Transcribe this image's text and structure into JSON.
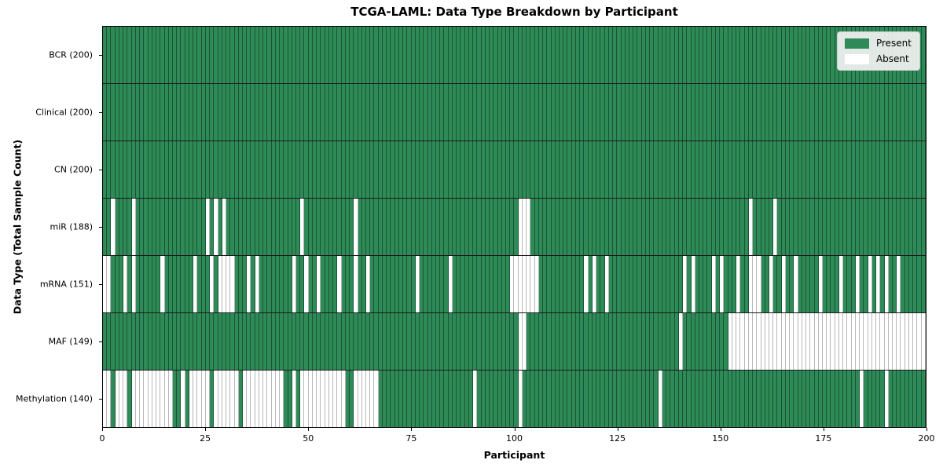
{
  "chart_data": {
    "type": "heatmap",
    "title": "TCGA-LAML: Data Type Breakdown by Participant",
    "xlabel": "Participant",
    "ylabel": "Data Type (Total Sample Count)",
    "n_participants": 200,
    "x_ticks": [
      0,
      25,
      50,
      75,
      100,
      125,
      150,
      175,
      200
    ],
    "legend": [
      {
        "label": "Present",
        "color": "#2e8b57"
      },
      {
        "label": "Absent",
        "color": "#ffffff"
      }
    ],
    "colors": {
      "present": "#2e8b57",
      "absent": "#ffffff",
      "present_edge": "rgba(10,40,25,0.55)",
      "absent_edge": "#b8b8b8"
    },
    "legend_position": "upper right",
    "grid": false,
    "rows": [
      {
        "label": "BCR (200)",
        "name": "BCR",
        "present_count": 200,
        "absent": []
      },
      {
        "label": "Clinical (200)",
        "name": "Clinical",
        "present_count": 200,
        "absent": []
      },
      {
        "label": "CN (200)",
        "name": "CN",
        "present_count": 200,
        "absent": []
      },
      {
        "label": "miR (188)",
        "name": "miR",
        "present_count": 188,
        "absent": [
          2,
          7,
          25,
          27,
          29,
          48,
          61,
          101,
          102,
          103,
          157,
          163
        ]
      },
      {
        "label": "mRNA (151)",
        "name": "mRNA",
        "present_count": 151,
        "absent": [
          0,
          1,
          5,
          7,
          14,
          22,
          26,
          28,
          29,
          30,
          31,
          35,
          37,
          46,
          49,
          52,
          57,
          61,
          64,
          76,
          84,
          99,
          100,
          101,
          102,
          103,
          104,
          105,
          117,
          119,
          122,
          141,
          143,
          148,
          150,
          154,
          157,
          158,
          159,
          162,
          165,
          168,
          174,
          179,
          183,
          186,
          188,
          190,
          193
        ]
      },
      {
        "label": "MAF (149)",
        "name": "MAF",
        "present_count": 149,
        "absent": [
          101,
          102,
          140,
          152,
          153,
          154,
          155,
          156,
          157,
          158,
          159,
          160,
          161,
          162,
          163,
          164,
          165,
          166,
          167,
          168,
          169,
          170,
          171,
          172,
          173,
          174,
          175,
          176,
          177,
          178,
          179,
          180,
          181,
          182,
          183,
          184,
          185,
          186,
          187,
          188,
          189,
          190,
          191,
          192,
          193,
          194,
          195,
          196,
          197,
          198,
          199
        ]
      },
      {
        "label": "Methylation (140)",
        "name": "Methylation",
        "present_count": 140,
        "absent": [
          0,
          1,
          3,
          4,
          5,
          7,
          8,
          9,
          10,
          11,
          12,
          13,
          14,
          15,
          16,
          19,
          21,
          22,
          23,
          24,
          25,
          27,
          28,
          29,
          30,
          31,
          32,
          34,
          35,
          36,
          37,
          38,
          39,
          40,
          41,
          42,
          43,
          46,
          48,
          49,
          50,
          51,
          52,
          53,
          54,
          55,
          56,
          57,
          58,
          61,
          62,
          63,
          64,
          65,
          66,
          90,
          101,
          135,
          184,
          190
        ]
      }
    ]
  }
}
